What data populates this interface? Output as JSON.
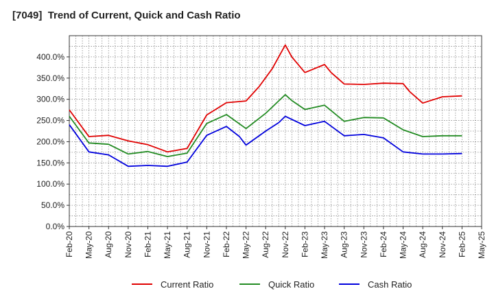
{
  "chart_data": {
    "type": "line",
    "title": "[7049]  Trend of Current, Quick and Cash Ratio",
    "xlabel": "",
    "ylabel": "",
    "ylim": [
      0,
      450
    ],
    "yticks": [
      0,
      50,
      100,
      150,
      200,
      250,
      300,
      350,
      400
    ],
    "ytick_labels": [
      "0.0%",
      "50.0%",
      "100.0%",
      "150.0%",
      "200.0%",
      "250.0%",
      "300.0%",
      "350.0%",
      "400.0%"
    ],
    "xtick_labels": [
      "Feb-20",
      "May-20",
      "Aug-20",
      "Nov-20",
      "Feb-21",
      "May-21",
      "Aug-21",
      "Nov-21",
      "Feb-22",
      "May-22",
      "Aug-22",
      "Nov-22",
      "Feb-23",
      "May-23",
      "Aug-23",
      "Nov-23",
      "Feb-24",
      "May-24",
      "Aug-24",
      "Nov-24",
      "Feb-25",
      "May-25"
    ],
    "x_months_range": [
      0,
      63
    ],
    "grid": true,
    "legend_position": "bottom",
    "series": [
      {
        "name": "Current Ratio",
        "color": "#e00000",
        "points": [
          [
            0,
            275
          ],
          [
            3,
            212
          ],
          [
            6,
            215
          ],
          [
            9,
            202
          ],
          [
            12,
            193
          ],
          [
            15,
            176
          ],
          [
            18,
            184
          ],
          [
            21,
            263
          ],
          [
            24,
            292
          ],
          [
            27,
            296
          ],
          [
            29,
            330
          ],
          [
            31,
            372
          ],
          [
            33,
            428
          ],
          [
            34,
            400
          ],
          [
            36,
            363
          ],
          [
            39,
            382
          ],
          [
            40,
            363
          ],
          [
            42,
            336
          ],
          [
            45,
            335
          ],
          [
            48,
            338
          ],
          [
            51,
            337
          ],
          [
            52,
            318
          ],
          [
            54,
            291
          ],
          [
            57,
            306
          ],
          [
            60,
            308
          ]
        ]
      },
      {
        "name": "Quick Ratio",
        "color": "#228b22",
        "points": [
          [
            0,
            260
          ],
          [
            3,
            197
          ],
          [
            6,
            194
          ],
          [
            9,
            171
          ],
          [
            12,
            177
          ],
          [
            15,
            165
          ],
          [
            18,
            173
          ],
          [
            21,
            243
          ],
          [
            24,
            264
          ],
          [
            27,
            231
          ],
          [
            30,
            267
          ],
          [
            33,
            311
          ],
          [
            34,
            297
          ],
          [
            36,
            276
          ],
          [
            39,
            286
          ],
          [
            42,
            248
          ],
          [
            45,
            257
          ],
          [
            48,
            256
          ],
          [
            51,
            228
          ],
          [
            54,
            212
          ],
          [
            57,
            214
          ],
          [
            60,
            214
          ]
        ]
      },
      {
        "name": "Cash Ratio",
        "color": "#0000dd",
        "points": [
          [
            0,
            240
          ],
          [
            3,
            176
          ],
          [
            6,
            169
          ],
          [
            9,
            142
          ],
          [
            12,
            144
          ],
          [
            15,
            142
          ],
          [
            18,
            152
          ],
          [
            21,
            215
          ],
          [
            24,
            236
          ],
          [
            26,
            212
          ],
          [
            27,
            192
          ],
          [
            30,
            225
          ],
          [
            32,
            245
          ],
          [
            33,
            260
          ],
          [
            36,
            238
          ],
          [
            39,
            248
          ],
          [
            42,
            214
          ],
          [
            45,
            217
          ],
          [
            48,
            209
          ],
          [
            51,
            176
          ],
          [
            54,
            171
          ],
          [
            57,
            171
          ],
          [
            60,
            172
          ]
        ]
      }
    ]
  }
}
